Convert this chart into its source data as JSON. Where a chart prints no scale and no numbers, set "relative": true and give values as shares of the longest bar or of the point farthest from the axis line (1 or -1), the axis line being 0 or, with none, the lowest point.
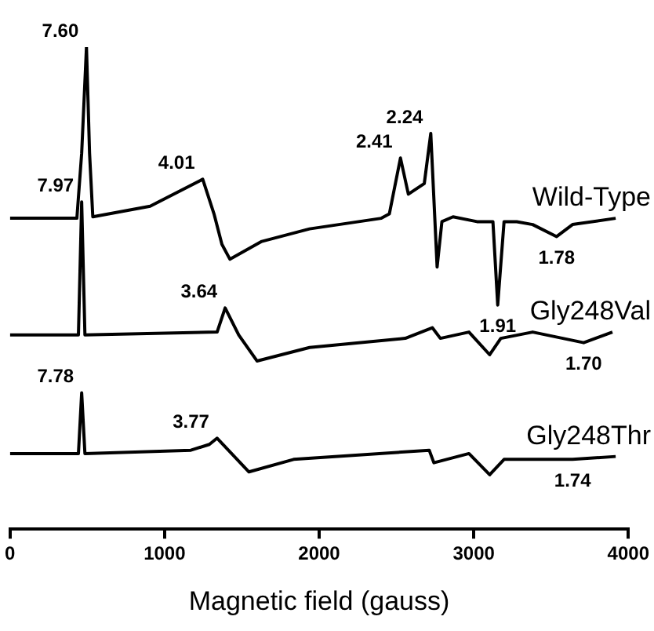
{
  "chart_data": {
    "type": "line",
    "xlabel": "Magnetic field (gauss)",
    "relative": true,
    "xlim": [
      0,
      4000
    ],
    "xticks": [
      0,
      1000,
      2000,
      3000,
      4000
    ],
    "grid": false,
    "legend": false,
    "marker": "none",
    "tick_labels": "x",
    "series": [
      {
        "name": "Wild-Type",
        "color": "#000000",
        "x": [
          0,
          433,
          464,
          495,
          515,
          536,
          907,
          1247,
          1320,
          1371,
          1423,
          1629,
          1938,
          2402,
          2454,
          2526,
          2577,
          2680,
          2722,
          2742,
          2763,
          2794,
          2866,
          3021,
          3124,
          3155,
          3196,
          3278,
          3381,
          3536,
          3639,
          3918
        ],
        "values": [
          0.645,
          0.645,
          0.78,
          1.0,
          0.78,
          0.648,
          0.67,
          0.726,
          0.654,
          0.591,
          0.56,
          0.597,
          0.623,
          0.645,
          0.654,
          0.77,
          0.695,
          0.717,
          0.821,
          0.686,
          0.544,
          0.638,
          0.648,
          0.638,
          0.638,
          0.465,
          0.638,
          0.638,
          0.632,
          0.607,
          0.632,
          0.645
        ]
      },
      {
        "name": "Gly248Val",
        "color": "#000000",
        "x": [
          0,
          443,
          464,
          485,
          1340,
          1392,
          1480,
          1598,
          1938,
          2557,
          2732,
          2784,
          2969,
          3103,
          3175,
          3381,
          3711,
          3897
        ],
        "values": [
          0.403,
          0.403,
          0.679,
          0.403,
          0.409,
          0.459,
          0.403,
          0.349,
          0.377,
          0.396,
          0.418,
          0.396,
          0.409,
          0.362,
          0.396,
          0.409,
          0.387,
          0.409
        ]
      },
      {
        "name": "Gly248Thr",
        "color": "#000000",
        "x": [
          0,
          443,
          464,
          485,
          1170,
          1290,
          1340,
          1546,
          1835,
          2712,
          2742,
          2969,
          3103,
          3196,
          3639,
          3918
        ],
        "values": [
          0.157,
          0.157,
          0.283,
          0.157,
          0.164,
          0.176,
          0.189,
          0.119,
          0.145,
          0.164,
          0.138,
          0.157,
          0.113,
          0.145,
          0.145,
          0.151
        ]
      }
    ],
    "annotations": [
      {
        "text": "7.60",
        "x": 495,
        "y": 1.0
      },
      {
        "text": "4.01",
        "x": 1247,
        "y": 0.726
      },
      {
        "text": "2.41",
        "x": 2526,
        "y": 0.77
      },
      {
        "text": "2.24",
        "x": 2722,
        "y": 0.821
      },
      {
        "text": "1.91",
        "x": 3155,
        "y": 0.465
      },
      {
        "text": "1.78",
        "x": 3536,
        "y": 0.607
      },
      {
        "text": "7.97",
        "x": 464,
        "y": 0.679
      },
      {
        "text": "3.64",
        "x": 1392,
        "y": 0.459
      },
      {
        "text": "1.70",
        "x": 3711,
        "y": 0.387
      },
      {
        "text": "7.78",
        "x": 464,
        "y": 0.283
      },
      {
        "text": "3.77",
        "x": 1340,
        "y": 0.189
      },
      {
        "text": "1.74",
        "x": 3639,
        "y": 0.145
      }
    ]
  }
}
